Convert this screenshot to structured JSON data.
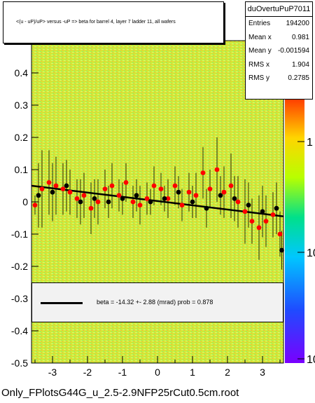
{
  "title": "<(u - uP)/uP>  versus  -uP => beta for barrel 4, layer 7 ladder 11, all wafers",
  "file_label": "Only_FPlotsG44G_u_2.5-2.9NFP25rCut0.5cm.root",
  "stats": {
    "name": "duOvertuPuP7011",
    "rows": [
      {
        "label": "Entries",
        "value": "194200"
      },
      {
        "label": "Mean x",
        "value": "0.981"
      },
      {
        "label": "Mean y",
        "value": "-0.001594"
      },
      {
        "label": "RMS x",
        "value": "1.904"
      },
      {
        "label": "RMS y",
        "value": "0.2785"
      }
    ]
  },
  "fit": {
    "text": "beta =  -14.32 +-  2.88 (mrad) prob = 0.878"
  },
  "chart_data": {
    "type": "scatter",
    "title": "<(u - uP)/uP>  versus  -uP => beta for barrel 4, layer 7 ladder 11, all wafers",
    "xlabel": "",
    "ylabel": "",
    "xlim": [
      -3.6,
      3.6
    ],
    "ylim": [
      -0.5,
      0.5
    ],
    "x_ticks": [
      "-3",
      "-2",
      "-1",
      "0",
      "1",
      "2",
      "3"
    ],
    "y_ticks": [
      "-0.5",
      "-0.4",
      "-0.3",
      "-0.2",
      "-0.1",
      "0",
      "0.1",
      "0.2",
      "0.3",
      "0.4"
    ],
    "colorbar": {
      "scale": "log",
      "tick_labels": [
        "1",
        "10",
        "10"
      ]
    },
    "fit_line": {
      "x": [
        -3.6,
        3.6
      ],
      "y": [
        0.05,
        -0.045
      ]
    },
    "series": [
      {
        "marker": "red-circle",
        "color": "#ff0000",
        "points": [
          {
            "x": -3.5,
            "y": -0.01,
            "err": 0.03
          },
          {
            "x": -3.3,
            "y": 0.04,
            "err": 0.12
          },
          {
            "x": -3.1,
            "y": 0.06,
            "err": 0.1
          },
          {
            "x": -2.9,
            "y": 0.05,
            "err": 0.09
          },
          {
            "x": -2.7,
            "y": 0.04,
            "err": 0.08
          },
          {
            "x": -2.5,
            "y": 0.03,
            "err": 0.07
          },
          {
            "x": -2.3,
            "y": 0.01,
            "err": 0.06
          },
          {
            "x": -2.1,
            "y": 0.02,
            "err": 0.07
          },
          {
            "x": -1.9,
            "y": -0.02,
            "err": 0.08
          },
          {
            "x": -1.7,
            "y": 0.0,
            "err": 0.07
          },
          {
            "x": -1.5,
            "y": 0.04,
            "err": 0.06
          },
          {
            "x": -1.3,
            "y": 0.05,
            "err": 0.07
          },
          {
            "x": -1.1,
            "y": 0.02,
            "err": 0.05
          },
          {
            "x": -0.9,
            "y": 0.06,
            "err": 0.06
          },
          {
            "x": -0.7,
            "y": 0.0,
            "err": 0.05
          },
          {
            "x": -0.5,
            "y": -0.01,
            "err": 0.06
          },
          {
            "x": -0.3,
            "y": 0.01,
            "err": 0.05
          },
          {
            "x": -0.1,
            "y": 0.05,
            "err": 0.06
          },
          {
            "x": 0.1,
            "y": 0.04,
            "err": 0.05
          },
          {
            "x": 0.3,
            "y": 0.01,
            "err": 0.06
          },
          {
            "x": 0.5,
            "y": 0.05,
            "err": 0.06
          },
          {
            "x": 0.7,
            "y": -0.01,
            "err": 0.05
          },
          {
            "x": 0.9,
            "y": 0.03,
            "err": 0.06
          },
          {
            "x": 1.1,
            "y": 0.02,
            "err": 0.07
          },
          {
            "x": 1.3,
            "y": 0.09,
            "err": 0.08
          },
          {
            "x": 1.5,
            "y": 0.04,
            "err": 0.06
          },
          {
            "x": 1.7,
            "y": 0.1,
            "err": 0.1
          },
          {
            "x": 1.9,
            "y": 0.03,
            "err": 0.08
          },
          {
            "x": 2.1,
            "y": 0.05,
            "err": 0.1
          },
          {
            "x": 2.3,
            "y": 0.0,
            "err": 0.08
          },
          {
            "x": 2.5,
            "y": -0.03,
            "err": 0.1
          },
          {
            "x": 2.7,
            "y": -0.06,
            "err": 0.07
          },
          {
            "x": 2.9,
            "y": -0.08,
            "err": 0.1
          },
          {
            "x": 3.1,
            "y": -0.06,
            "err": 0.08
          },
          {
            "x": 3.3,
            "y": -0.04,
            "err": 0.07
          },
          {
            "x": 3.5,
            "y": -0.1,
            "err": 0.07
          }
        ]
      },
      {
        "marker": "black-circle",
        "color": "#000000",
        "points": [
          {
            "x": -3.4,
            "y": 0.02,
            "err": 0.1
          },
          {
            "x": -3.0,
            "y": 0.03,
            "err": 0.09
          },
          {
            "x": -2.6,
            "y": 0.05,
            "err": 0.08
          },
          {
            "x": -2.2,
            "y": 0.0,
            "err": 0.07
          },
          {
            "x": -1.8,
            "y": 0.01,
            "err": 0.06
          },
          {
            "x": -1.4,
            "y": 0.0,
            "err": 0.05
          },
          {
            "x": -1.0,
            "y": 0.01,
            "err": 0.05
          },
          {
            "x": -0.6,
            "y": 0.02,
            "err": 0.05
          },
          {
            "x": -0.2,
            "y": 0.0,
            "err": 0.04
          },
          {
            "x": 0.2,
            "y": 0.01,
            "err": 0.04
          },
          {
            "x": 0.6,
            "y": 0.03,
            "err": 0.05
          },
          {
            "x": 1.0,
            "y": 0.0,
            "err": 0.05
          },
          {
            "x": 1.4,
            "y": -0.02,
            "err": 0.06
          },
          {
            "x": 1.8,
            "y": 0.02,
            "err": 0.06
          },
          {
            "x": 2.2,
            "y": 0.01,
            "err": 0.07
          },
          {
            "x": 2.6,
            "y": -0.01,
            "err": 0.07
          },
          {
            "x": 3.0,
            "y": -0.03,
            "err": 0.08
          },
          {
            "x": 3.4,
            "y": -0.02,
            "err": 0.08
          },
          {
            "x": 3.55,
            "y": -0.15,
            "err": 0.06
          }
        ]
      }
    ]
  }
}
